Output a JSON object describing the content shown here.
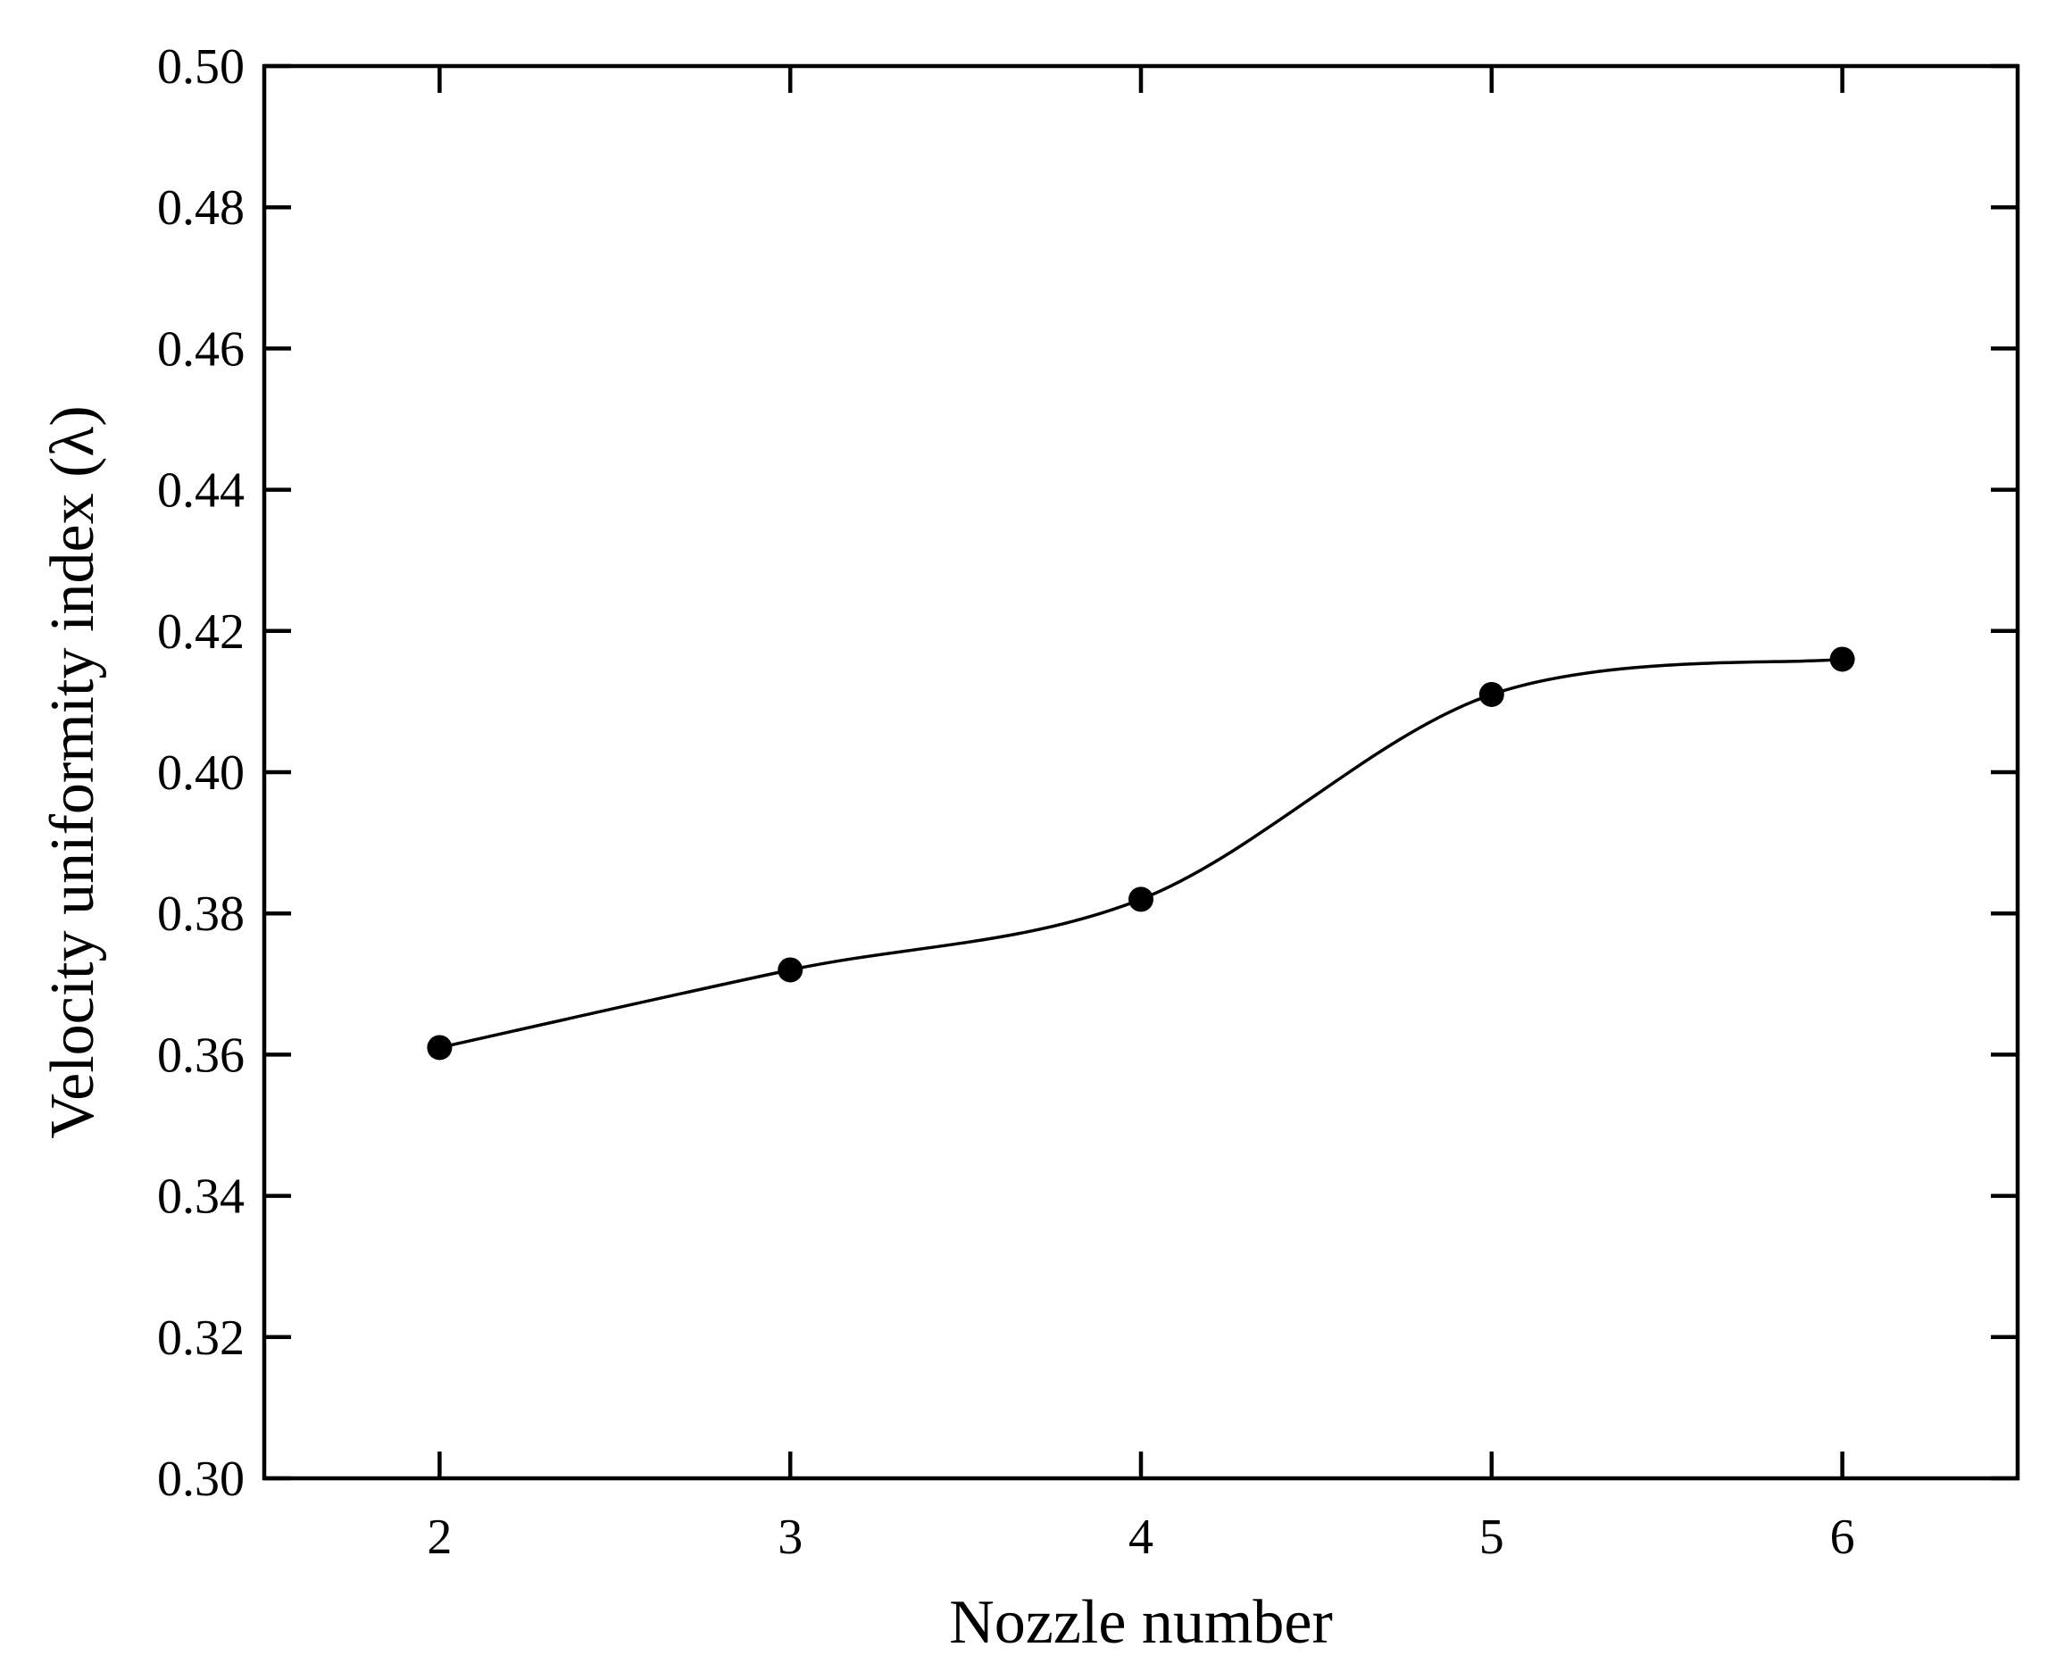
{
  "chart_data": {
    "type": "line",
    "title": "",
    "xlabel": "Nozzle number",
    "ylabel": "Velocity uniformity index (λ)",
    "x": [
      2,
      3,
      4,
      5,
      6
    ],
    "series": [
      {
        "values": [
          0.361,
          0.372,
          0.382,
          0.411,
          0.416
        ]
      }
    ],
    "xlim": [
      1.5,
      6.5
    ],
    "ylim": [
      0.3,
      0.5
    ],
    "xticks": [
      "2",
      "3",
      "4",
      "5",
      "6"
    ],
    "yticks": [
      "0.30",
      "0.32",
      "0.34",
      "0.36",
      "0.38",
      "0.40",
      "0.42",
      "0.44",
      "0.46",
      "0.48",
      "0.50"
    ],
    "grid": false,
    "line_style": "smooth",
    "marker": "filled-circle",
    "colors": {
      "line": "#000000",
      "marker": "#000000",
      "axes": "#000000"
    }
  }
}
